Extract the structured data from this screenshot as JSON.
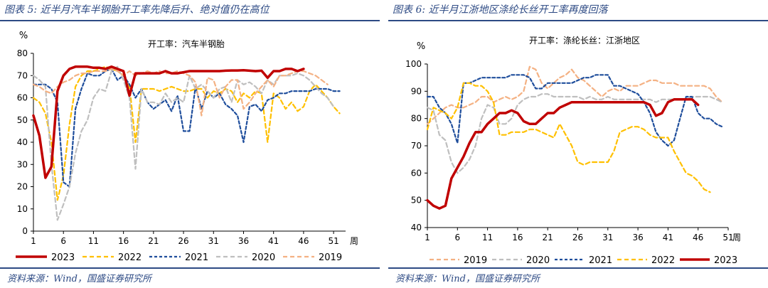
{
  "charts": [
    {
      "title": "图表 5: 近半月汽车半钢胎开工率先降后升、绝对值仍在高位",
      "source": "资料来源：Wind，国盛证券研究所",
      "colors": {
        "accent": "#2d4a84"
      },
      "chart_data": {
        "type": "line",
        "title": "开工率：汽车半钢胎",
        "ylabel": "%",
        "xlabel": "周",
        "xlim": [
          1,
          53
        ],
        "ylim": [
          0,
          80
        ],
        "x_ticks": [
          1,
          6,
          11,
          16,
          21,
          26,
          31,
          36,
          41,
          46,
          51
        ],
        "y_ticks": [
          0,
          10,
          20,
          30,
          40,
          50,
          60,
          70,
          80
        ],
        "legend_position": "bottom",
        "series": [
          {
            "name": "2023",
            "color": "#c00000",
            "dash": "solid",
            "width": 3.5,
            "values": [
              52,
              43,
              24,
              29,
              63,
              70,
              73,
              74,
              74,
              74,
              73.5,
              73.5,
              73,
              74,
              73,
              72,
              61,
              71,
              71,
              71,
              71,
              71,
              72,
              71,
              71,
              71.5,
              72,
              72,
              72,
              72,
              72,
              72,
              72.2,
              72.3,
              72.3,
              72.4,
              72.2,
              72,
              72.2,
              69,
              72,
              72,
              73,
              73,
              72,
              73
            ]
          },
          {
            "name": "2022",
            "color": "#ffc000",
            "dash": "6,4",
            "width": 2.2,
            "values": [
              60,
              58,
              53,
              40,
              14,
              25,
              48,
              65,
              70,
              72,
              72,
              73,
              74,
              73,
              72,
              70,
              65,
              40,
              64,
              64,
              64,
              63,
              64,
              65,
              64,
              63,
              63,
              64,
              64,
              60,
              63,
              62,
              64,
              63,
              58,
              62,
              60,
              63,
              62,
              40,
              62,
              60,
              55,
              58,
              54,
              56,
              63,
              66,
              63,
              60,
              56,
              53
            ]
          },
          {
            "name": "2021",
            "color": "#1f4e9c",
            "dash": "4,3",
            "width": 2.2,
            "values": [
              66,
              66,
              66,
              64,
              58,
              22,
              20,
              55,
              64,
              71,
              70,
              70,
              72,
              73,
              68,
              70,
              66,
              60,
              64,
              58,
              55,
              57,
              59,
              54,
              61,
              45,
              45,
              65,
              55,
              63,
              60,
              62,
              57,
              55,
              52,
              40,
              56,
              57,
              54,
              59,
              60,
              62,
              62,
              63,
              63,
              63,
              63,
              64,
              64,
              64,
              63,
              63
            ]
          },
          {
            "name": "2020",
            "color": "#bfbfbf",
            "dash": "6,4",
            "width": 2.2,
            "values": [
              70,
              68,
              65,
              30,
              5,
              12,
              20,
              35,
              45,
              50,
              60,
              64,
              63,
              72,
              74,
              68,
              60,
              28,
              64,
              58,
              58,
              57,
              62,
              58,
              60,
              58,
              70,
              64,
              66,
              63,
              60,
              64,
              65,
              58,
              68,
              66,
              67,
              65,
              62,
              68,
              66,
              70,
              70,
              70,
              71,
              70,
              68,
              65,
              62,
              60,
              56
            ]
          },
          {
            "name": "2019",
            "color": "#f4b183",
            "dash": "6,4",
            "width": 2.2,
            "values": [
              66,
              65,
              63,
              62,
              65,
              67,
              68,
              70,
              71,
              71,
              72,
              72,
              72,
              73,
              72,
              70,
              72,
              70,
              71,
              72,
              71,
              72,
              71,
              71,
              72,
              71,
              70,
              67,
              52,
              69,
              68,
              60,
              65,
              68,
              68,
              55,
              58,
              62,
              65,
              68,
              65,
              70,
              70,
              71,
              72,
              72,
              71,
              70,
              68,
              66
            ]
          }
        ]
      }
    },
    {
      "title": "图表 6: 近半月江浙地区涤纶长丝开工率再度回落",
      "source": "资料来源：Wind，国盛证券研究所",
      "colors": {
        "accent": "#2d4a84"
      },
      "chart_data": {
        "type": "line",
        "title": "开工率：涤纶长丝：江浙地区",
        "ylabel": "%",
        "xlabel": "周",
        "xlim": [
          1,
          51
        ],
        "ylim": [
          40,
          100
        ],
        "x_ticks": [
          1,
          6,
          11,
          16,
          21,
          26,
          31,
          36,
          41,
          46,
          51
        ],
        "y_ticks": [
          40,
          50,
          60,
          70,
          80,
          90,
          100
        ],
        "legend_position": "bottom",
        "series": [
          {
            "name": "2019",
            "color": "#f4b183",
            "dash": "6,4",
            "width": 2.2,
            "values": [
              78,
              80,
              82,
              84,
              85,
              84,
              84,
              85,
              86,
              88,
              88,
              86,
              87,
              88,
              87,
              88,
              90,
              99,
              98,
              93,
              91,
              93,
              95,
              96,
              98,
              95,
              94,
              92,
              90,
              88,
              90,
              91,
              90,
              92,
              92,
              92,
              93,
              94,
              94,
              93,
              93,
              93,
              92,
              92,
              92,
              92,
              92,
              91,
              88,
              86
            ]
          },
          {
            "name": "2020",
            "color": "#bfbfbf",
            "dash": "6,4",
            "width": 2.2,
            "values": [
              84,
              83,
              74,
              72,
              64,
              60,
              62,
              65,
              70,
              80,
              85,
              84,
              78,
              78,
              80,
              85,
              87,
              88,
              88,
              89,
              89,
              88,
              88,
              88,
              88,
              88,
              87,
              88,
              87,
              87,
              88,
              87,
              87,
              87,
              87,
              87,
              87,
              87,
              86,
              87,
              87,
              87,
              87,
              87,
              88,
              88,
              88,
              88,
              87,
              86
            ]
          },
          {
            "name": "2021",
            "color": "#1f4e9c",
            "dash": "4,3",
            "width": 2.2,
            "values": [
              88,
              88,
              84,
              82,
              78,
              71,
              93,
              93,
              94,
              95,
              95,
              95,
              95,
              95,
              96,
              96,
              96,
              95,
              91,
              91,
              93,
              93,
              93,
              93,
              93,
              94,
              95,
              95,
              96,
              96,
              96,
              92,
              92,
              91,
              90,
              89,
              86,
              82,
              75,
              72,
              70,
              72,
              80,
              88,
              88,
              82,
              80,
              80,
              78,
              77
            ]
          },
          {
            "name": "2022",
            "color": "#ffc000",
            "dash": "6,4",
            "width": 2.2,
            "values": [
              76,
              84,
              83,
              82,
              80,
              84,
              93,
              93,
              92,
              92,
              90,
              86,
              74,
              74,
              75,
              75,
              75,
              76,
              76,
              75,
              74,
              73,
              78,
              74,
              70,
              64,
              63,
              64,
              64,
              64,
              64,
              68,
              75,
              76,
              77,
              77,
              76,
              74,
              73,
              73,
              73,
              68,
              64,
              60,
              59,
              57,
              54,
              53
            ]
          },
          {
            "name": "2023",
            "color": "#c00000",
            "dash": "solid",
            "width": 3.5,
            "values": [
              50,
              48,
              47,
              48,
              58,
              62,
              66,
              71,
              75,
              75,
              78,
              80,
              82,
              82,
              83,
              82,
              79,
              78,
              78,
              80,
              82,
              82,
              84,
              85,
              86,
              86,
              86,
              86,
              86,
              86,
              86,
              86,
              86,
              86,
              86,
              86,
              86,
              85,
              81,
              82,
              86,
              87,
              87,
              87,
              87,
              85
            ]
          }
        ]
      }
    }
  ]
}
